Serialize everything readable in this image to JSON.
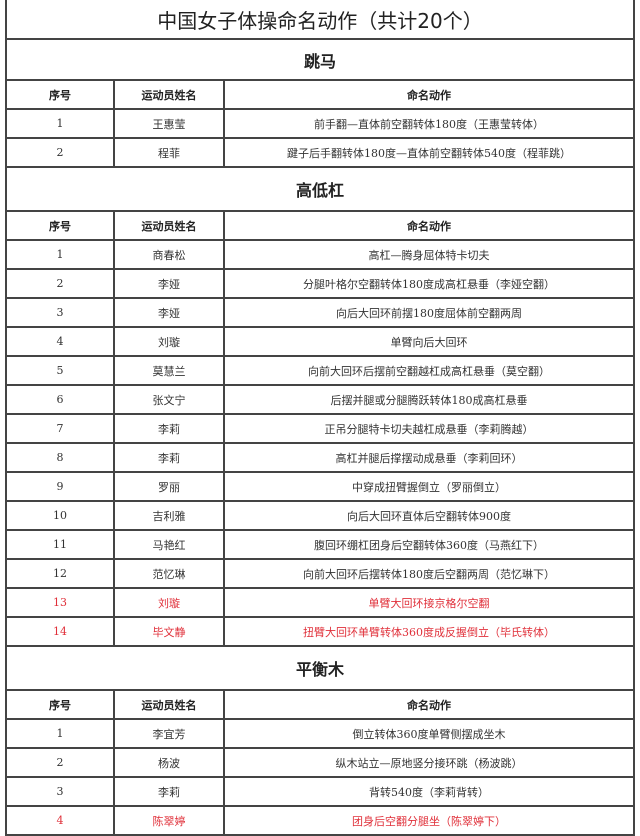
{
  "title": "中国女子体操命名动作（共计20个）",
  "highlight_color": "#e0303a",
  "columns": [
    "序号",
    "运动员姓名",
    "命名动作"
  ],
  "sections": [
    {
      "name": "跳马",
      "rows": [
        {
          "no": "1",
          "athlete": "王惠莹",
          "skill": "前手翻—直体前空翻转体180度（王惠莹转体）",
          "highlight": false
        },
        {
          "no": "2",
          "athlete": "程菲",
          "skill": "踺子后手翻转体180度—直体前空翻转体540度（程菲跳）",
          "highlight": false
        }
      ]
    },
    {
      "name": "高低杠",
      "rows": [
        {
          "no": "1",
          "athlete": "商春松",
          "skill": "高杠—腾身屈体特卡切夫",
          "highlight": false
        },
        {
          "no": "2",
          "athlete": "李娅",
          "skill": "分腿叶格尔空翻转体180度成高杠悬垂（李娅空翻）",
          "highlight": false
        },
        {
          "no": "3",
          "athlete": "李娅",
          "skill": "向后大回环前摆180度屈体前空翻两周",
          "highlight": false
        },
        {
          "no": "4",
          "athlete": "刘璇",
          "skill": "单臂向后大回环",
          "highlight": false
        },
        {
          "no": "5",
          "athlete": "莫慧兰",
          "skill": "向前大回环后摆前空翻越杠成高杠悬垂（莫空翻）",
          "highlight": false
        },
        {
          "no": "6",
          "athlete": "张文宁",
          "skill": "后摆并腿或分腿腾跃转体180成高杠悬垂",
          "highlight": false
        },
        {
          "no": "7",
          "athlete": "李莉",
          "skill": "正吊分腿特卡切夫越杠成悬垂（李莉腾越）",
          "highlight": false
        },
        {
          "no": "8",
          "athlete": "李莉",
          "skill": "高杠并腿后撑摆动成悬垂（李莉回环）",
          "highlight": false
        },
        {
          "no": "9",
          "athlete": "罗丽",
          "skill": "中穿成扭臂握倒立（罗丽倒立）",
          "highlight": false
        },
        {
          "no": "10",
          "athlete": "吉利雅",
          "skill": "向后大回环直体后空翻转体900度",
          "highlight": false
        },
        {
          "no": "11",
          "athlete": "马艳红",
          "skill": "腹回环绷杠团身后空翻转体360度（马燕红下）",
          "highlight": false
        },
        {
          "no": "12",
          "athlete": "范忆琳",
          "skill": "向前大回环后摆转体180度后空翻两周（范忆琳下）",
          "highlight": false
        },
        {
          "no": "13",
          "athlete": "刘璇",
          "skill": "单臂大回环接京格尔空翻",
          "highlight": true
        },
        {
          "no": "14",
          "athlete": "毕文静",
          "skill": "扭臂大回环单臂转体360度成反握倒立（毕氏转体）",
          "highlight": true
        }
      ]
    },
    {
      "name": "平衡木",
      "rows": [
        {
          "no": "1",
          "athlete": "李宜芳",
          "skill": "倒立转体360度单臂侧摆成坐木",
          "highlight": false
        },
        {
          "no": "2",
          "athlete": "杨波",
          "skill": "纵木站立—原地竖分接环跳（杨波跳）",
          "highlight": false
        },
        {
          "no": "3",
          "athlete": "李莉",
          "skill": "背转540度（李莉背转）",
          "highlight": false
        },
        {
          "no": "4",
          "athlete": "陈翠婷",
          "skill": "团身后空翻分腿坐（陈翠婷下）",
          "highlight": true
        }
      ]
    }
  ]
}
